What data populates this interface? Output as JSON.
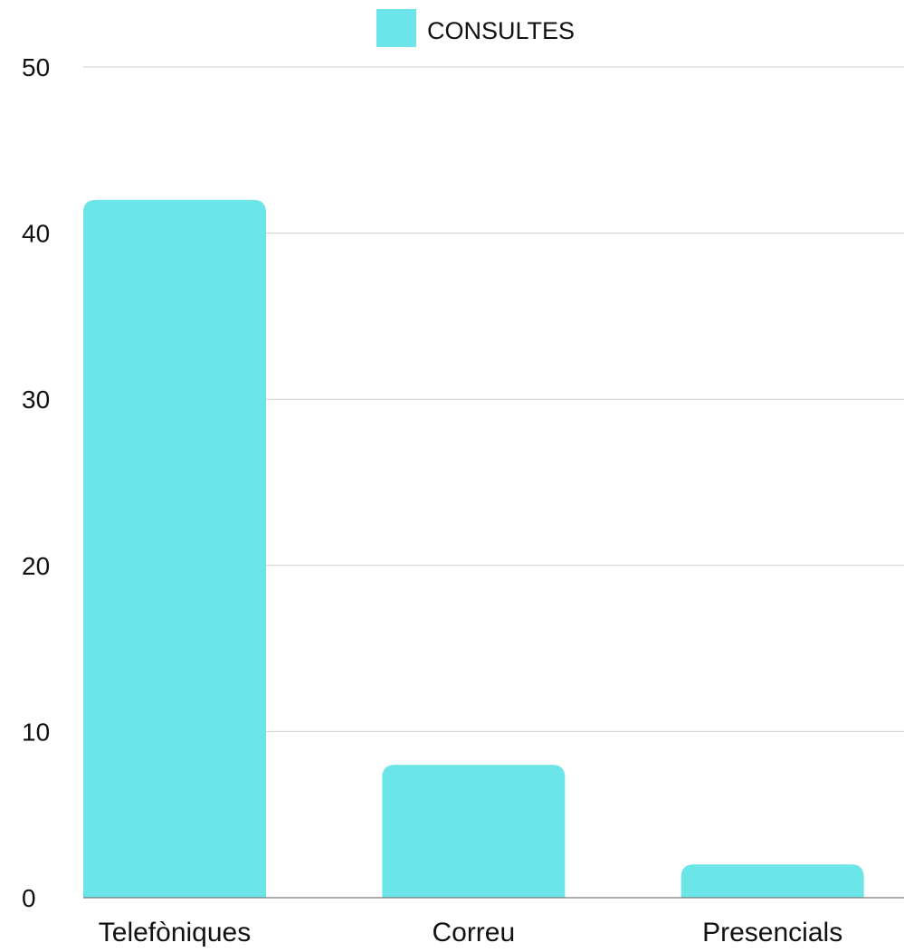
{
  "chart_data": {
    "type": "bar",
    "title": "",
    "xlabel": "",
    "ylabel": "",
    "categories": [
      "Telefòniques",
      "Correu",
      "Presencials"
    ],
    "series": [
      {
        "name": "CONSULTES",
        "values": [
          42,
          8,
          2
        ],
        "color": "#6ce5e8"
      }
    ],
    "ylim": [
      0,
      50
    ],
    "yticks": [
      0,
      10,
      20,
      30,
      40,
      50
    ],
    "grid": true,
    "legend_position": "top-center"
  }
}
